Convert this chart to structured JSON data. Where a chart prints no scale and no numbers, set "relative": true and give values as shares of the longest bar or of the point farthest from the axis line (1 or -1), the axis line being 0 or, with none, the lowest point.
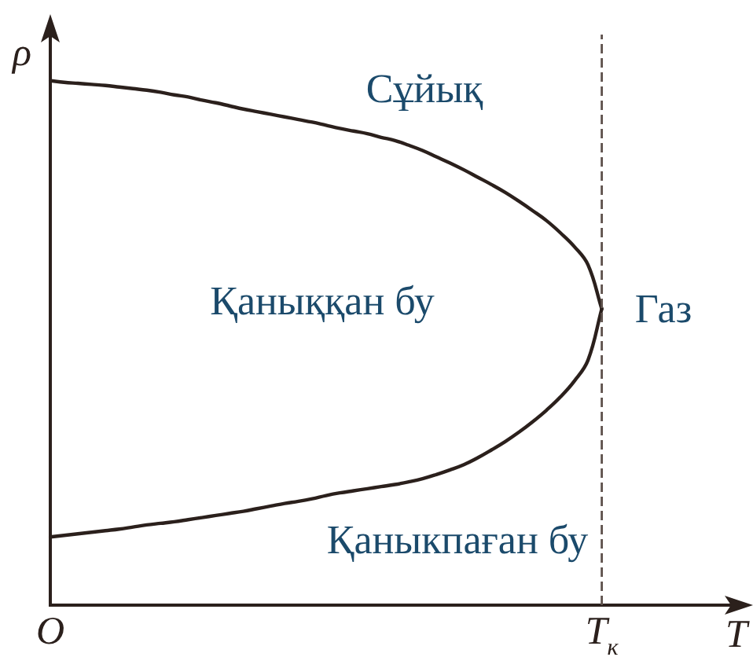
{
  "chart_data": {
    "type": "line",
    "relative": true,
    "xlabel": "T",
    "ylabel": "ρ",
    "categories": [
      "O",
      null,
      null,
      null,
      null,
      null,
      null,
      null,
      null,
      null,
      null,
      null,
      null,
      null,
      null,
      null,
      null,
      null,
      null,
      null,
      null,
      null,
      null,
      null,
      null,
      null,
      null,
      null,
      null,
      null,
      null,
      null,
      null,
      null,
      null,
      null,
      null,
      null,
      null,
      null,
      "T$_{к}$",
      null,
      null,
      null,
      null,
      null,
      null,
      null,
      null,
      null,
      null
    ],
    "series": [
      {
        "color": "#2b201c",
        "values": [
          1.0,
          0.997,
          0.995,
          0.993,
          0.991,
          0.988,
          0.985,
          0.982,
          0.978,
          0.973,
          0.969,
          0.963,
          0.958,
          0.952,
          0.946,
          0.941,
          0.936,
          0.931,
          0.926,
          0.921,
          0.915,
          0.909,
          0.904,
          0.899,
          0.892,
          0.886,
          0.877,
          0.867,
          0.855,
          0.843,
          0.83,
          0.816,
          0.802,
          0.787,
          0.77,
          0.752,
          0.733,
          0.71,
          0.684,
          0.649,
          0.565,
          null,
          null,
          null,
          null,
          null,
          null,
          null,
          null,
          null,
          null
        ]
      },
      {
        "color": "#2b201c",
        "values": [
          0.13,
          0.133,
          0.136,
          0.139,
          0.142,
          0.145,
          0.149,
          0.153,
          0.156,
          0.159,
          0.163,
          0.167,
          0.171,
          0.175,
          0.179,
          0.184,
          0.189,
          0.194,
          0.198,
          0.203,
          0.209,
          0.214,
          0.218,
          0.222,
          0.226,
          0.23,
          0.235,
          0.241,
          0.249,
          0.258,
          0.268,
          0.281,
          0.296,
          0.312,
          0.33,
          0.35,
          0.372,
          0.397,
          0.427,
          0.467,
          0.565,
          null,
          null,
          null,
          null,
          null,
          null,
          null,
          null,
          null,
          null
        ]
      }
    ],
    "ref_lines": [
      {
        "axis": "x",
        "value": "T$_{к}$",
        "color": "#5e514c",
        "line_style": "dashed"
      }
    ],
    "annotations": [
      "Сұйық",
      "Қаныққан бу",
      "Газ",
      "Қаныкпаған бу"
    ],
    "legend": false,
    "marker": "none",
    "line_style": "solid"
  }
}
